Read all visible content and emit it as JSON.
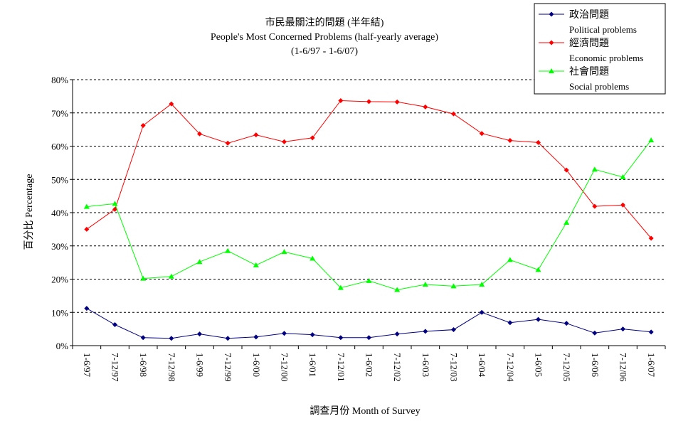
{
  "chart_data": {
    "type": "line",
    "title": "市民最關注的問題 (半年結)",
    "subtitle": "People's Most Concerned Problems (half-yearly average)",
    "period": "(1-6/97 - 1-6/07)",
    "xlabel": "調查月份 Month of Survey",
    "ylabel": "百分比 Percentage",
    "ylim": [
      0,
      80
    ],
    "y_ticks": [
      "0%",
      "10%",
      "20%",
      "30%",
      "40%",
      "50%",
      "60%",
      "70%",
      "80%"
    ],
    "grid": "horizontal dashed",
    "legend_position": "top-right",
    "categories": [
      "1-6/97",
      "7-12/97",
      "1-6/98",
      "7-12/98",
      "1-6/99",
      "7-12/99",
      "1-6/00",
      "7-12/00",
      "1-6/01",
      "7-12/01",
      "1-6/02",
      "7-12/02",
      "1-6/03",
      "7-12/03",
      "1-6/04",
      "7-12/04",
      "1-6/05",
      "7-12/05",
      "1-6/06",
      "7-12/06",
      "1-6/07"
    ],
    "series": [
      {
        "name": "政治問題",
        "name_en": "Political problems",
        "color": "#000080",
        "marker": "diamond",
        "values": [
          11.2,
          6.3,
          2.4,
          2.2,
          3.5,
          2.2,
          2.6,
          3.7,
          3.3,
          2.4,
          2.4,
          3.5,
          4.3,
          4.8,
          10.0,
          6.9,
          7.9,
          6.7,
          3.8,
          5.0,
          4.1
        ]
      },
      {
        "name": "經濟問題",
        "name_en": "Economic problems",
        "color": "#ff0000",
        "marker": "diamond",
        "values": [
          35.0,
          41.0,
          66.2,
          72.7,
          63.7,
          60.9,
          63.4,
          61.3,
          62.5,
          73.7,
          73.4,
          73.3,
          71.8,
          69.7,
          63.8,
          61.7,
          61.1,
          52.8,
          41.9,
          42.3,
          32.3
        ]
      },
      {
        "name": "社會問題",
        "name_en": "Social problems",
        "color": "#00ff00",
        "marker": "triangle",
        "values": [
          41.8,
          42.7,
          20.2,
          20.8,
          25.2,
          28.5,
          24.2,
          28.2,
          26.2,
          17.4,
          19.5,
          16.8,
          18.4,
          17.9,
          18.4,
          25.8,
          22.8,
          37.0,
          53.0,
          50.7,
          61.8
        ]
      }
    ]
  }
}
